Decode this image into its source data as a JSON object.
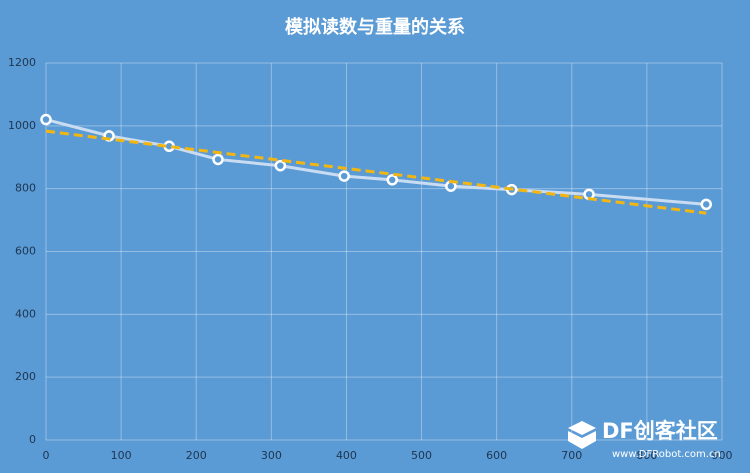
{
  "chart_data": {
    "type": "line",
    "title": "模拟读数与重量的关系",
    "xlim": [
      0,
      900
    ],
    "xticks": [
      0,
      100,
      200,
      300,
      400,
      500,
      600,
      700,
      800,
      900
    ],
    "ylim": [
      0,
      1200
    ],
    "yticks": [
      0,
      200,
      400,
      600,
      800,
      1000,
      1200
    ],
    "grid": true,
    "series": [
      {
        "color": "#c9dcf2",
        "markers": true,
        "x": [
          0,
          84,
          164,
          229,
          312,
          397,
          461,
          539,
          620,
          723,
          879
        ],
        "values": [
          1020,
          968,
          935,
          893,
          873,
          840,
          828,
          808,
          797,
          782,
          750
        ]
      },
      {
        "color": "#f2b613",
        "dashed": true,
        "x": [
          0,
          879
        ],
        "values": [
          983,
          722
        ]
      }
    ],
    "watermark": {
      "brand": "DF创客社区",
      "url": "www.DFRobot.com.cn"
    }
  }
}
